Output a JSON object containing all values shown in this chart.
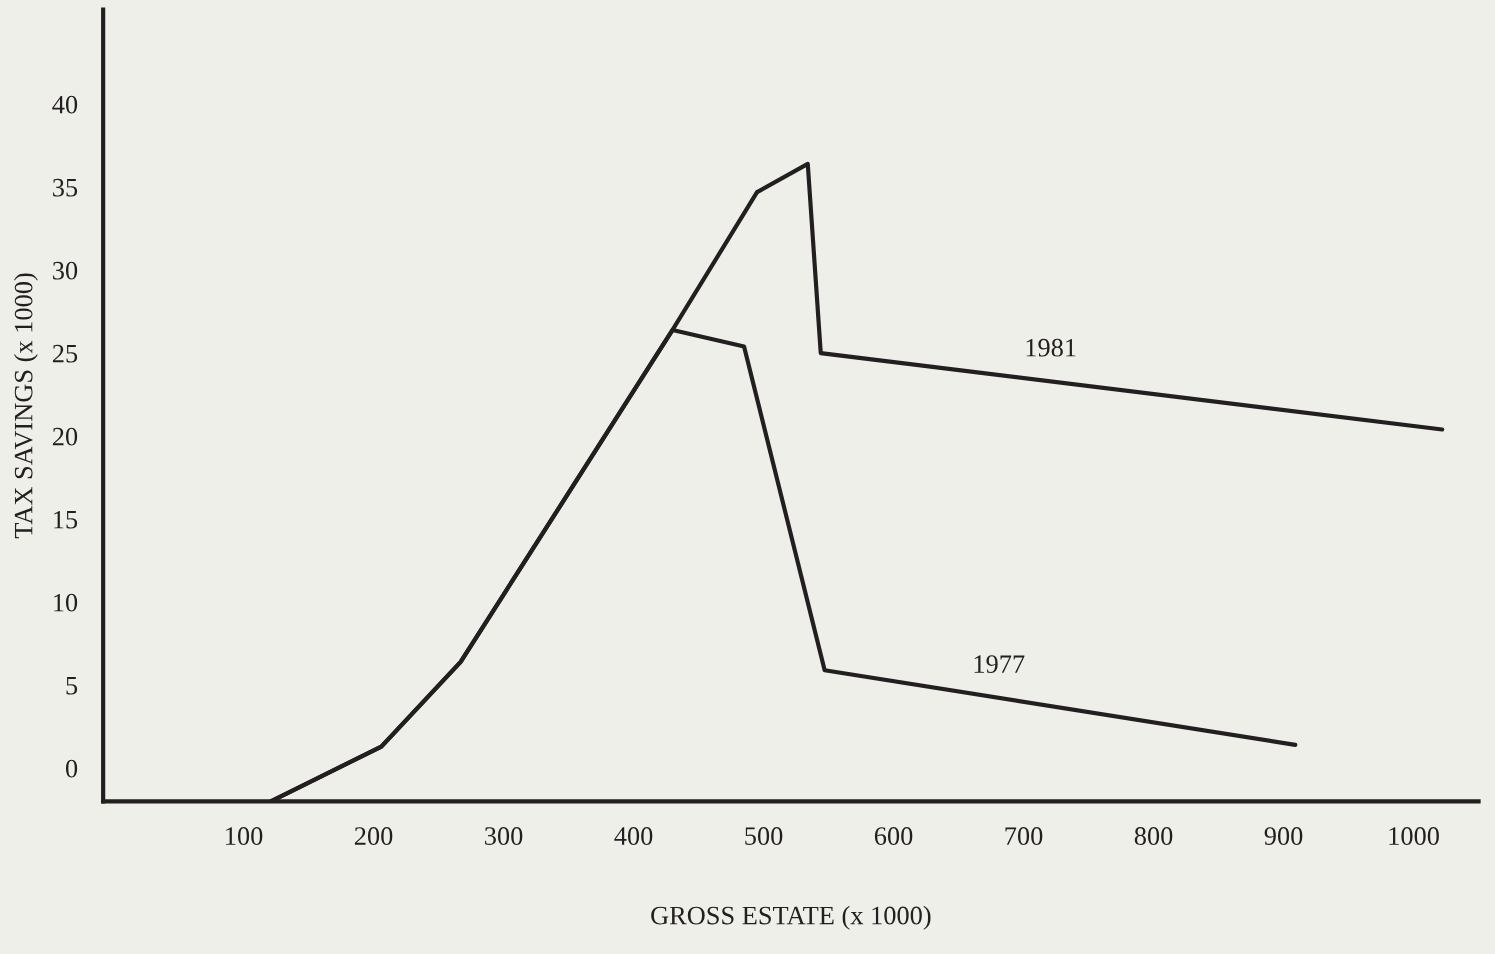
{
  "chart_data": {
    "type": "line",
    "xlabel": "GROSS ESTATE (x 1000)",
    "ylabel": "TAX SAVINGS (x 1000)",
    "xlim": [
      -8,
      1050
    ],
    "ylim": [
      -2,
      45.7
    ],
    "xticks": [
      100,
      200,
      300,
      400,
      500,
      600,
      700,
      800,
      900,
      1000
    ],
    "yticks": [
      0,
      5,
      10,
      15,
      20,
      25,
      30,
      35,
      40
    ],
    "grid": false,
    "legend": false,
    "marker": "none",
    "line_style": "solid",
    "series": [
      {
        "name": "1981",
        "color": "#231f20",
        "x": [
          121,
          206,
          267,
          430,
          495,
          534,
          544,
          1022
        ],
        "values": [
          -2,
          1.3,
          6.4,
          26.4,
          34.7,
          36.4,
          25.0,
          20.4
        ]
      },
      {
        "name": "1977",
        "color": "#231f20",
        "x": [
          121,
          206,
          267,
          430,
          485,
          547,
          909
        ],
        "values": [
          -2,
          1.3,
          6.4,
          26.4,
          25.4,
          5.9,
          1.4
        ]
      }
    ]
  }
}
